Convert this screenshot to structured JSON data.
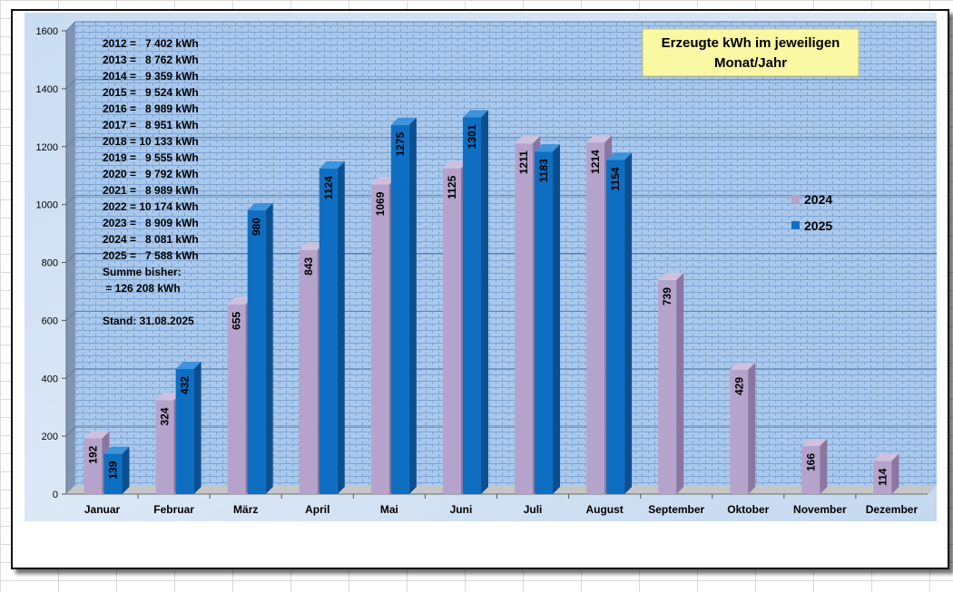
{
  "chart_data": {
    "type": "bar",
    "title": "Erzeugte kWh im jeweiligen Monat/Jahr",
    "title_lines": [
      "Erzeugte kWh im jeweiligen",
      "Monat/Jahr"
    ],
    "categories": [
      "Januar",
      "Februar",
      "März",
      "April",
      "Mai",
      "Juni",
      "Juli",
      "August",
      "September",
      "Oktober",
      "November",
      "Dezember"
    ],
    "series": [
      {
        "name": "2024",
        "color": "#b6a3cb",
        "values": [
          192,
          324,
          655,
          843,
          1069,
          1125,
          1211,
          1214,
          739,
          429,
          166,
          114
        ]
      },
      {
        "name": "2025",
        "color": "#0e6fc2",
        "values": [
          139,
          432,
          980,
          1124,
          1275,
          1301,
          1183,
          1154,
          null,
          null,
          null,
          null
        ]
      }
    ],
    "ylim": [
      0,
      1600
    ],
    "yticks": [
      "0",
      "200",
      "400",
      "600",
      "800",
      "1000",
      "1200",
      "1400",
      "1600"
    ],
    "ytick_values": [
      0,
      200,
      400,
      600,
      800,
      1000,
      1200,
      1400,
      1600
    ],
    "xlabel": "",
    "ylabel": "",
    "grid": true,
    "legend_position": "right",
    "annotations": [
      "2012 =   7 402 kWh",
      "2013 =   8 762 kWh",
      "2014 =   9 359 kWh",
      "2015 =   9 524 kWh",
      "2016 =   8 989 kWh",
      "2017 =   8 951 kWh",
      "2018 = 10 133 kWh",
      "2019 =   9 555 kWh",
      "2020 =   9 792 kWh",
      "2021 =   8 989 kWh",
      "2022 = 10 174 kWh",
      "2023 =   8 909 kWh",
      "2024 =   8 081 kWh",
      "2025 =   7 588 kWh",
      "Summe bisher:",
      " = 126 208 kWh"
    ],
    "stand": "Stand: 31.08.2025"
  }
}
